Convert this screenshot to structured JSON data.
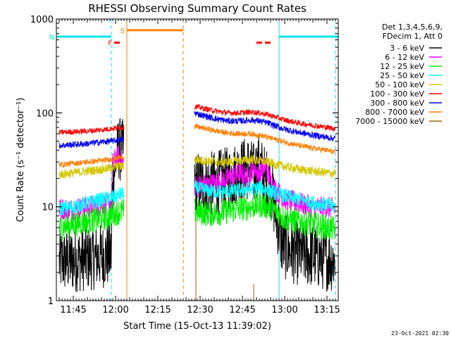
{
  "chart_data": {
    "type": "line",
    "title": "RHESSI Observing Summary Count Rates",
    "xlabel": "Start Time (15-Oct-13 11:39:02)",
    "ylabel": "Count Rate (s⁻¹ detector⁻¹)",
    "y_scale": "log",
    "ylim": [
      1,
      1000
    ],
    "x_ticks": [
      "11:45",
      "12:00",
      "12:15",
      "12:30",
      "12:45",
      "13:00",
      "13:15"
    ],
    "x_tick_minutes": [
      345,
      360,
      375,
      390,
      405,
      420,
      435
    ],
    "xlim_minutes": [
      339,
      439
    ],
    "y_ticks": [
      "1",
      "10",
      "100",
      "1000"
    ],
    "y_tick_values": [
      1,
      10,
      100,
      1000
    ],
    "grid": false,
    "legend_header": [
      "Det 1,3,4,5,6,9,",
      "FDecim 1, Att 0"
    ],
    "legend_position": "right",
    "footer_date": "23-Oct-2021 02:30",
    "colors": {
      "saa_line": "#00e5ee",
      "flag_S": "#ff7f00",
      "flag_F": "#ff0000"
    },
    "flags": [
      {
        "label": "N",
        "color": "#00e5ee",
        "start": 339,
        "end": 358.5,
        "y": 650
      },
      {
        "label": "F",
        "color": "#ff0000",
        "start": 359.5,
        "end": 361.5,
        "y": 560
      },
      {
        "label": "S",
        "color": "#ff7f00",
        "start": 364,
        "end": 384,
        "y": 760
      },
      {
        "label": "",
        "color": "#ff0000",
        "start": 410,
        "end": 412,
        "y": 560
      },
      {
        "label": "",
        "color": "#ff0000",
        "start": 413,
        "end": 415,
        "y": 560
      },
      {
        "label": "",
        "color": "#00e5ee",
        "start": 418,
        "end": 439,
        "y": 650
      }
    ],
    "markers": [
      {
        "x": 339,
        "color": "#00e5ee",
        "style": "solid"
      },
      {
        "x": 358.5,
        "color": "#00e5ee",
        "style": "dashed"
      },
      {
        "x": 364,
        "color": "#ff7f00",
        "style": "solid"
      },
      {
        "x": 384,
        "color": "#ff7f00",
        "style": "dashed"
      },
      {
        "x": 418,
        "color": "#00e5ee",
        "style": "solid"
      },
      {
        "x": 438,
        "color": "#00e5ee",
        "style": "dashed"
      }
    ],
    "series": [
      {
        "name": "3 - 6 keV",
        "color": "#000000",
        "seg1": [
          [
            340,
            2.6
          ],
          [
            345,
            2.7
          ],
          [
            350,
            2.8
          ],
          [
            355,
            3.0
          ],
          [
            358.5,
            3.1
          ],
          [
            359,
            20
          ],
          [
            361,
            42
          ],
          [
            363,
            38
          ]
        ],
        "seg2": [
          [
            388,
            18
          ],
          [
            392,
            17
          ],
          [
            396,
            18
          ],
          [
            400,
            20
          ],
          [
            404,
            24
          ],
          [
            407,
            26
          ],
          [
            409,
            22
          ],
          [
            411,
            28
          ],
          [
            413,
            20
          ],
          [
            415,
            17
          ],
          [
            417,
            8
          ],
          [
            419,
            4
          ],
          [
            421,
            3.5
          ],
          [
            425,
            3.2
          ],
          [
            430,
            3.0
          ],
          [
            435,
            2.8
          ],
          [
            438,
            2.7
          ]
        ],
        "noise": 0.35
      },
      {
        "name": "6 - 12 keV",
        "color": "#ff00ff",
        "seg1": [
          [
            340,
            9.5
          ],
          [
            345,
            9.5
          ],
          [
            350,
            10
          ],
          [
            355,
            10.5
          ],
          [
            358.5,
            11
          ],
          [
            359,
            30
          ],
          [
            361,
            35
          ],
          [
            363,
            28
          ]
        ],
        "seg2": [
          [
            388,
            17
          ],
          [
            392,
            17
          ],
          [
            396,
            18
          ],
          [
            400,
            20
          ],
          [
            404,
            23
          ],
          [
            407,
            20
          ],
          [
            409,
            27
          ],
          [
            411,
            22
          ],
          [
            413,
            28
          ],
          [
            415,
            19
          ],
          [
            417,
            15
          ],
          [
            420,
            12
          ],
          [
            425,
            11
          ],
          [
            430,
            10
          ],
          [
            435,
            9.8
          ],
          [
            438,
            9.6
          ]
        ],
        "noise": 0.12
      },
      {
        "name": "12 - 25 keV",
        "color": "#00ee00",
        "seg1": [
          [
            340,
            6.0
          ],
          [
            345,
            6.5
          ],
          [
            350,
            7.0
          ],
          [
            355,
            7.5
          ],
          [
            358.5,
            8
          ],
          [
            359,
            8.5
          ],
          [
            363,
            9
          ]
        ],
        "seg2": [
          [
            388,
            9.0
          ],
          [
            392,
            8.5
          ],
          [
            396,
            8.5
          ],
          [
            400,
            9
          ],
          [
            404,
            9.5
          ],
          [
            408,
            10
          ],
          [
            411,
            10.5
          ],
          [
            414,
            10
          ],
          [
            417,
            9
          ],
          [
            420,
            7.5
          ],
          [
            425,
            7
          ],
          [
            430,
            6.5
          ],
          [
            435,
            6
          ],
          [
            438,
            5.8
          ]
        ],
        "noise": 0.14
      },
      {
        "name": "25 - 50 keV",
        "color": "#00ffff",
        "seg1": [
          [
            340,
            9.5
          ],
          [
            345,
            10
          ],
          [
            350,
            11
          ],
          [
            355,
            12
          ],
          [
            358.5,
            12.5
          ],
          [
            360,
            13
          ],
          [
            363,
            14
          ]
        ],
        "seg2": [
          [
            388,
            16
          ],
          [
            392,
            15
          ],
          [
            396,
            14.5
          ],
          [
            400,
            14.5
          ],
          [
            404,
            15
          ],
          [
            408,
            15.5
          ],
          [
            411,
            16
          ],
          [
            414,
            15
          ],
          [
            417,
            14
          ],
          [
            420,
            13
          ],
          [
            425,
            12
          ],
          [
            430,
            11
          ],
          [
            435,
            10.5
          ],
          [
            438,
            10
          ]
        ],
        "noise": 0.08
      },
      {
        "name": "50 - 100 keV",
        "color": "#d4c800",
        "seg1": [
          [
            340,
            22
          ],
          [
            345,
            23
          ],
          [
            350,
            24
          ],
          [
            355,
            25
          ],
          [
            358.5,
            26
          ],
          [
            360,
            27
          ],
          [
            363,
            27
          ]
        ],
        "seg2": [
          [
            388,
            32
          ],
          [
            392,
            31
          ],
          [
            396,
            30
          ],
          [
            400,
            30
          ],
          [
            404,
            31
          ],
          [
            408,
            32
          ],
          [
            411,
            31
          ],
          [
            414,
            30
          ],
          [
            417,
            28
          ],
          [
            420,
            27
          ],
          [
            425,
            25
          ],
          [
            430,
            24
          ],
          [
            435,
            23
          ],
          [
            438,
            22.5
          ]
        ],
        "noise": 0.05
      },
      {
        "name": "100 - 300 keV",
        "color": "#ff0000",
        "seg1": [
          [
            340,
            62
          ],
          [
            345,
            63
          ],
          [
            350,
            64
          ],
          [
            355,
            66
          ],
          [
            358.5,
            68
          ],
          [
            360,
            69
          ],
          [
            363,
            70
          ]
        ],
        "seg2": [
          [
            388,
            118
          ],
          [
            392,
            110
          ],
          [
            396,
            104
          ],
          [
            400,
            100
          ],
          [
            404,
            100
          ],
          [
            408,
            102
          ],
          [
            411,
            100
          ],
          [
            414,
            96
          ],
          [
            417,
            90
          ],
          [
            420,
            84
          ],
          [
            425,
            78
          ],
          [
            430,
            74
          ],
          [
            435,
            70
          ],
          [
            438,
            68
          ]
        ],
        "noise": 0.03
      },
      {
        "name": "300 - 800 keV",
        "color": "#0000ee",
        "seg1": [
          [
            340,
            45
          ],
          [
            345,
            46
          ],
          [
            350,
            47
          ],
          [
            355,
            49
          ],
          [
            358.5,
            50
          ],
          [
            360,
            51
          ],
          [
            363,
            52
          ]
        ],
        "seg2": [
          [
            388,
            100
          ],
          [
            392,
            92
          ],
          [
            396,
            86
          ],
          [
            400,
            82
          ],
          [
            404,
            82
          ],
          [
            408,
            84
          ],
          [
            411,
            82
          ],
          [
            414,
            78
          ],
          [
            417,
            72
          ],
          [
            420,
            67
          ],
          [
            425,
            62
          ],
          [
            430,
            58
          ],
          [
            435,
            55
          ],
          [
            438,
            53
          ]
        ],
        "noise": 0.035
      },
      {
        "name": "800 - 7000 keV",
        "color": "#ff7f00",
        "seg1": [
          [
            340,
            28
          ],
          [
            345,
            29
          ],
          [
            350,
            30
          ],
          [
            355,
            31
          ],
          [
            358.5,
            32
          ],
          [
            360,
            33
          ],
          [
            363,
            34
          ]
        ],
        "seg2": [
          [
            388,
            72
          ],
          [
            392,
            68
          ],
          [
            396,
            64
          ],
          [
            400,
            61
          ],
          [
            404,
            60
          ],
          [
            408,
            60
          ],
          [
            411,
            58
          ],
          [
            414,
            55
          ],
          [
            417,
            52
          ],
          [
            420,
            49
          ],
          [
            425,
            45
          ],
          [
            430,
            42
          ],
          [
            435,
            40
          ],
          [
            438,
            38
          ]
        ],
        "noise": 0.03
      },
      {
        "name": "7000 - 15000 keV",
        "color": "#8b6914",
        "seg1": [],
        "seg2": [],
        "spikes": [
          [
            388.5,
            8
          ],
          [
            409,
            1.5
          ]
        ],
        "noise": 0
      }
    ]
  }
}
